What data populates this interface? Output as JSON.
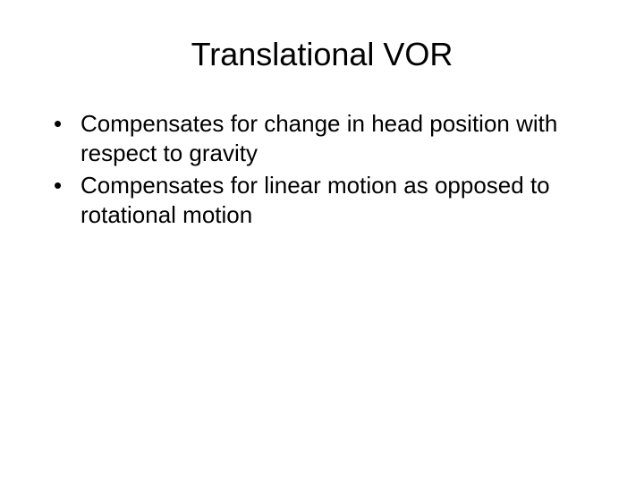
{
  "slide": {
    "title": "Translational VOR",
    "title_fontsize": 36,
    "title_color": "#000000",
    "bullets": [
      "Compensates for change in head position with respect to gravity",
      "Compensates for linear motion as opposed to rotational motion"
    ],
    "bullet_fontsize": 26,
    "bullet_color": "#000000",
    "background_color": "#ffffff",
    "font_family": "Arial"
  }
}
